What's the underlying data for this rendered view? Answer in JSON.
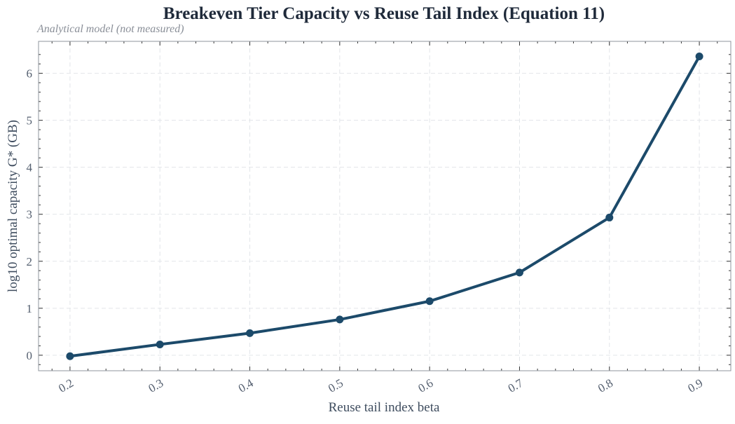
{
  "chart_data": {
    "type": "line",
    "title": "Breakeven Tier Capacity vs Reuse Tail Index (Equation 11)",
    "subtitle": "Analytical model (not measured)",
    "xlabel": "Reuse tail index beta",
    "ylabel": "log10 optimal capacity G* (GB)",
    "x": [
      0.2,
      0.3,
      0.4,
      0.5,
      0.6,
      0.7,
      0.8,
      0.9
    ],
    "x_tick_labels": [
      "0.2",
      "0.3",
      "0.4",
      "0.5",
      "0.6",
      "0.7",
      "0.8",
      "0.9"
    ],
    "y_ticks": [
      0,
      1,
      2,
      3,
      4,
      5,
      6
    ],
    "y_tick_labels": [
      "0",
      "1",
      "2",
      "3",
      "4",
      "5",
      "6"
    ],
    "series": [
      {
        "values": [
          -0.02,
          0.23,
          0.47,
          0.76,
          1.15,
          1.76,
          2.93,
          6.36
        ],
        "color": "#1c4a6a"
      }
    ],
    "xlim": [
      0.165,
      0.935
    ],
    "ylim": [
      -0.33,
      6.68
    ],
    "grid": true
  }
}
